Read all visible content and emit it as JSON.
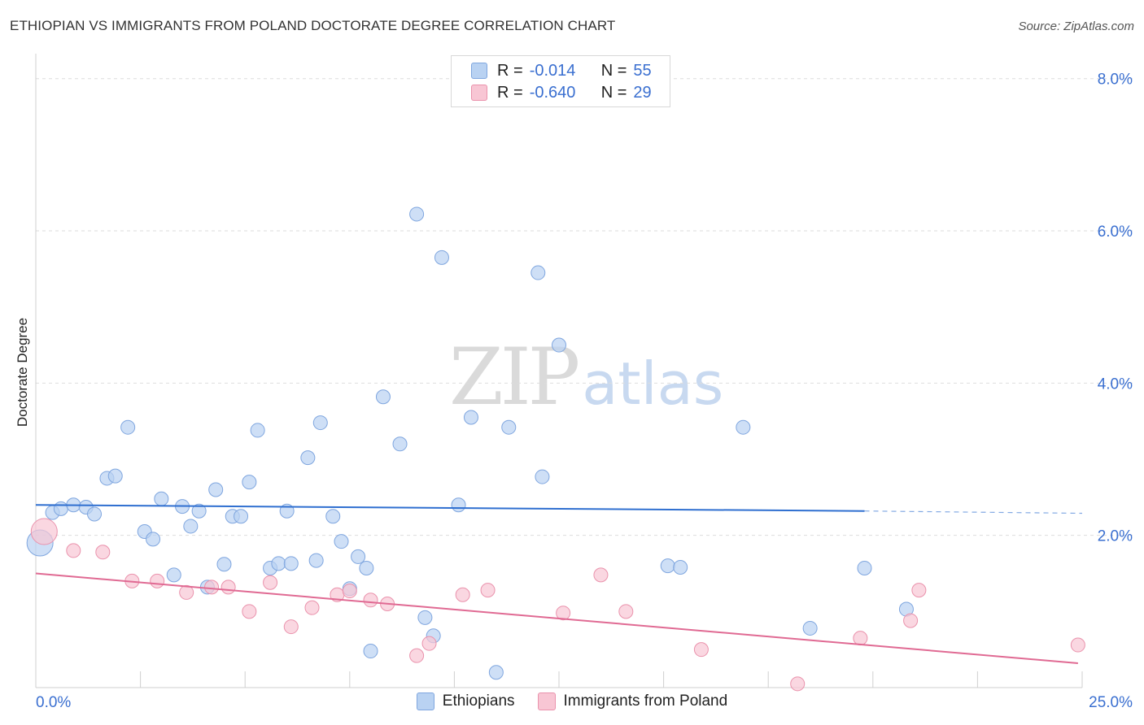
{
  "title": "ETHIOPIAN VS IMMIGRANTS FROM POLAND DOCTORATE DEGREE CORRELATION CHART",
  "source": "Source: ZipAtlas.com",
  "watermark": {
    "part1": "ZIP",
    "part2": "atlas"
  },
  "legend": {
    "r_label": "R =",
    "n_label": "N =",
    "series": [
      {
        "r": "-0.014",
        "n": "55"
      },
      {
        "r": "-0.640",
        "n": "29"
      }
    ]
  },
  "bottom_legend": [
    "Ethiopians",
    "Immigrants from Poland"
  ],
  "colors": {
    "blue_fill": "#b9d2f2",
    "blue_stroke": "#7fa6df",
    "blue_line": "#2f6fd0",
    "pink_fill": "#f8c6d4",
    "pink_stroke": "#ea92ac",
    "pink_line": "#e06a93",
    "axis_text": "#3a6fd0",
    "grid": "#dddddd"
  },
  "chart_data": {
    "type": "scatter",
    "title": "ETHIOPIAN VS IMMIGRANTS FROM POLAND DOCTORATE DEGREE CORRELATION CHART",
    "xlabel": "",
    "ylabel": "Doctorate Degree",
    "xlim": [
      0,
      25
    ],
    "ylim": [
      0,
      8.2
    ],
    "x_tick_labels": [
      {
        "value": 0,
        "label": "0.0%"
      },
      {
        "value": 25,
        "label": "25.0%"
      }
    ],
    "y_ticks": [
      {
        "value": 2,
        "label": "2.0%"
      },
      {
        "value": 4,
        "label": "4.0%"
      },
      {
        "value": 6,
        "label": "6.0%"
      },
      {
        "value": 8,
        "label": "8.0%"
      }
    ],
    "grid": true,
    "series": [
      {
        "name": "Ethiopians",
        "r": -0.014,
        "n": 55,
        "trend": {
          "x0": 0,
          "y0": 2.4,
          "x1": 19.8,
          "y1": 2.32,
          "dash_to_x": 25,
          "dash_to_y": 2.29
        },
        "points": [
          [
            0.1,
            1.9,
            1.0
          ],
          [
            0.4,
            2.3,
            0
          ],
          [
            0.6,
            2.35,
            0
          ],
          [
            0.9,
            2.4,
            0
          ],
          [
            1.2,
            2.37,
            0
          ],
          [
            1.4,
            2.28,
            0
          ],
          [
            1.7,
            2.75,
            0
          ],
          [
            1.9,
            2.78,
            0
          ],
          [
            2.2,
            3.42,
            0
          ],
          [
            2.6,
            2.05,
            0
          ],
          [
            2.8,
            1.95,
            0
          ],
          [
            3.0,
            2.48,
            0
          ],
          [
            3.3,
            1.48,
            0
          ],
          [
            3.5,
            2.38,
            0
          ],
          [
            3.7,
            2.12,
            0
          ],
          [
            3.9,
            2.32,
            0
          ],
          [
            4.1,
            1.32,
            0
          ],
          [
            4.3,
            2.6,
            0
          ],
          [
            4.5,
            1.62,
            0
          ],
          [
            4.7,
            2.25,
            0
          ],
          [
            4.9,
            2.25,
            0
          ],
          [
            5.1,
            2.7,
            0
          ],
          [
            5.3,
            3.38,
            0
          ],
          [
            5.6,
            1.57,
            0
          ],
          [
            5.8,
            1.63,
            0
          ],
          [
            6.0,
            2.32,
            0
          ],
          [
            6.1,
            1.63,
            0
          ],
          [
            6.5,
            3.02,
            0
          ],
          [
            6.7,
            1.67,
            0
          ],
          [
            6.8,
            3.48,
            0
          ],
          [
            7.1,
            2.25,
            0
          ],
          [
            7.3,
            1.92,
            0
          ],
          [
            7.5,
            1.3,
            0
          ],
          [
            7.7,
            1.72,
            0
          ],
          [
            7.9,
            1.57,
            0
          ],
          [
            8.0,
            0.48,
            0
          ],
          [
            8.3,
            3.82,
            0
          ],
          [
            8.7,
            3.2,
            0
          ],
          [
            9.1,
            6.22,
            0
          ],
          [
            9.3,
            0.92,
            0
          ],
          [
            9.5,
            0.68,
            0
          ],
          [
            9.7,
            5.65,
            0
          ],
          [
            10.1,
            2.4,
            0
          ],
          [
            10.4,
            3.55,
            0
          ],
          [
            11.0,
            0.2,
            0
          ],
          [
            11.3,
            3.42,
            0
          ],
          [
            12.0,
            5.45,
            0
          ],
          [
            12.1,
            2.77,
            0
          ],
          [
            12.5,
            4.5,
            0
          ],
          [
            15.1,
            1.6,
            0
          ],
          [
            15.4,
            1.58,
            0
          ],
          [
            16.9,
            3.42,
            0
          ],
          [
            18.5,
            0.78,
            0
          ],
          [
            19.8,
            1.57,
            0
          ],
          [
            20.8,
            1.03,
            0
          ]
        ]
      },
      {
        "name": "Immigrants from Poland",
        "r": -0.64,
        "n": 29,
        "trend": {
          "x0": 0,
          "y0": 1.5,
          "x1": 24.9,
          "y1": 0.32
        },
        "points": [
          [
            0.2,
            2.05,
            1.0
          ],
          [
            0.9,
            1.8,
            0
          ],
          [
            1.6,
            1.78,
            0
          ],
          [
            2.3,
            1.4,
            0
          ],
          [
            2.9,
            1.4,
            0
          ],
          [
            3.6,
            1.25,
            0
          ],
          [
            4.2,
            1.32,
            0
          ],
          [
            4.6,
            1.32,
            0
          ],
          [
            5.1,
            1.0,
            0
          ],
          [
            5.6,
            1.38,
            0
          ],
          [
            6.1,
            0.8,
            0
          ],
          [
            6.6,
            1.05,
            0
          ],
          [
            7.2,
            1.22,
            0
          ],
          [
            7.5,
            1.27,
            0
          ],
          [
            8.0,
            1.15,
            0
          ],
          [
            8.4,
            1.1,
            0
          ],
          [
            9.1,
            0.42,
            0
          ],
          [
            9.4,
            0.58,
            0
          ],
          [
            10.2,
            1.22,
            0
          ],
          [
            10.8,
            1.28,
            0
          ],
          [
            12.6,
            0.98,
            0
          ],
          [
            13.5,
            1.48,
            0
          ],
          [
            14.1,
            1.0,
            0
          ],
          [
            15.9,
            0.5,
            0
          ],
          [
            18.2,
            0.05,
            0
          ],
          [
            19.7,
            0.65,
            0
          ],
          [
            20.9,
            0.88,
            0
          ],
          [
            21.1,
            1.28,
            0
          ],
          [
            24.9,
            0.56,
            0
          ]
        ]
      }
    ]
  }
}
